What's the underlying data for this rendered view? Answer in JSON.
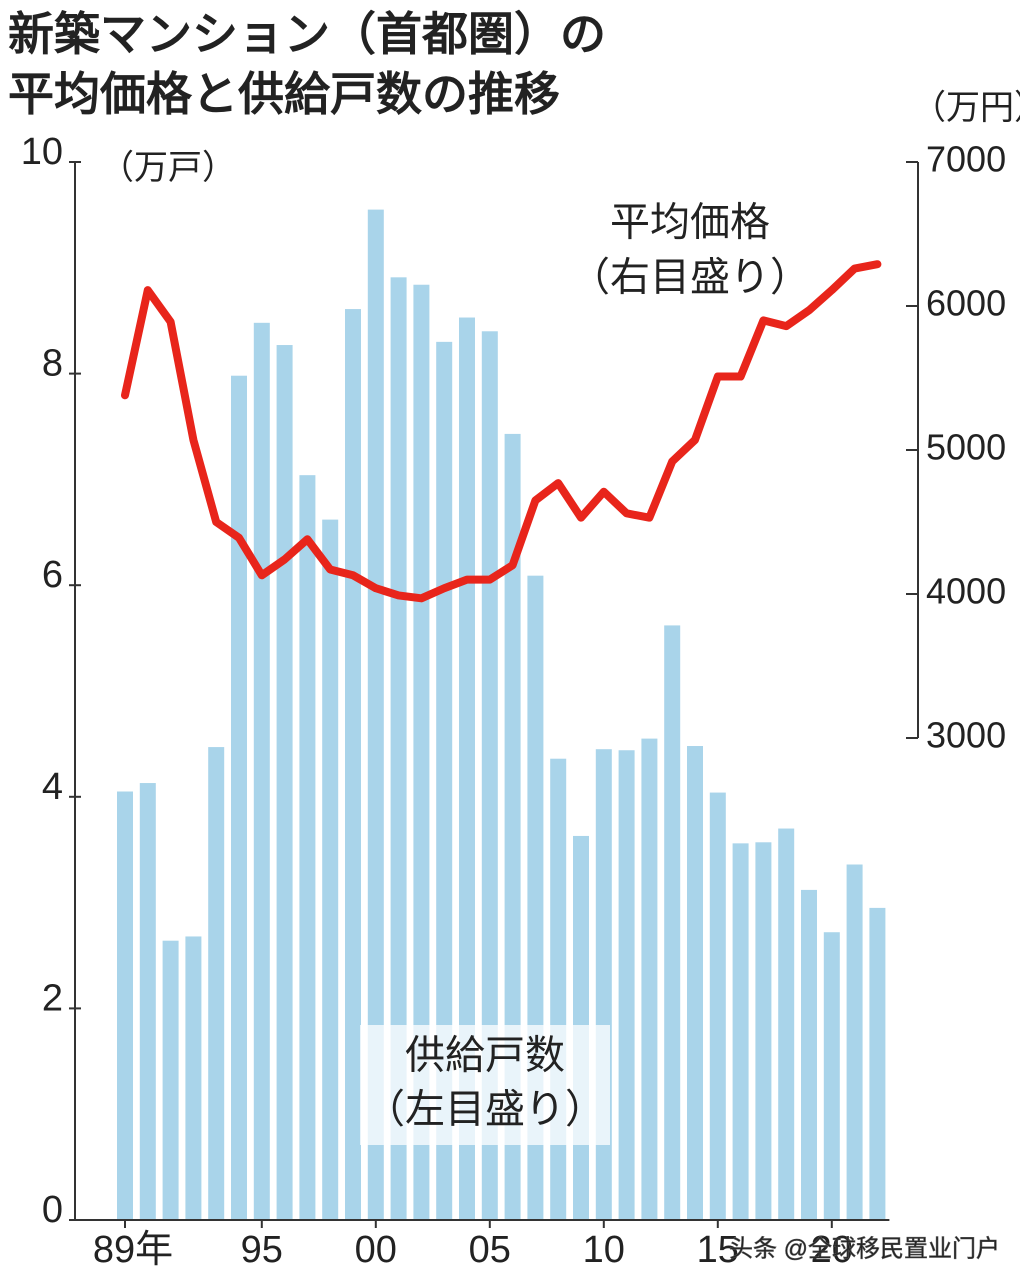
{
  "chart_data": {
    "type": "combo",
    "title": [
      "新築マンション（首都圏）の",
      "平均価格と供給戸数の推移"
    ],
    "ylabel": "（万戸）",
    "y2label": "（万円）",
    "categories": [
      "89年",
      null,
      null,
      null,
      null,
      null,
      "95",
      null,
      null,
      null,
      null,
      "00",
      null,
      null,
      null,
      null,
      "05",
      null,
      null,
      null,
      null,
      "10",
      null,
      null,
      null,
      null,
      "15",
      null,
      null,
      null,
      null,
      "20",
      null,
      null
    ],
    "series": [
      {
        "name": "供給戸数",
        "note": "（左目盛り）",
        "type": "bar",
        "color": "#a9d4ea",
        "axis": "y",
        "values": [
          4.05,
          4.13,
          2.64,
          2.68,
          4.47,
          7.98,
          8.48,
          8.27,
          7.04,
          6.62,
          8.61,
          9.55,
          8.91,
          8.84,
          8.3,
          8.53,
          8.4,
          7.43,
          6.09,
          4.36,
          3.63,
          4.45,
          4.44,
          4.55,
          5.62,
          4.48,
          4.04,
          3.56,
          3.57,
          3.7,
          3.12,
          2.72,
          3.36,
          2.95
        ]
      },
      {
        "name": "平均価格",
        "note": "（右目盛り）",
        "type": "line",
        "color": "#e8251b",
        "axis": "y2",
        "values": [
          5380,
          6110,
          5890,
          5070,
          4500,
          4390,
          4130,
          4240,
          4380,
          4170,
          4130,
          4040,
          3990,
          3970,
          4040,
          4100,
          4100,
          4200,
          4650,
          4770,
          4530,
          4710,
          4560,
          4530,
          4920,
          5070,
          5510,
          5510,
          5900,
          5860,
          5970,
          6110,
          6260,
          6290
        ]
      }
    ],
    "ylim": [
      0,
      10
    ],
    "yticks": [
      0,
      2,
      4,
      6,
      8,
      10
    ],
    "y2lim": [
      3000,
      7000
    ],
    "y2ticks": [
      3000,
      4000,
      5000,
      6000,
      7000
    ],
    "watermark": "头条 @全球移民置业门户"
  }
}
